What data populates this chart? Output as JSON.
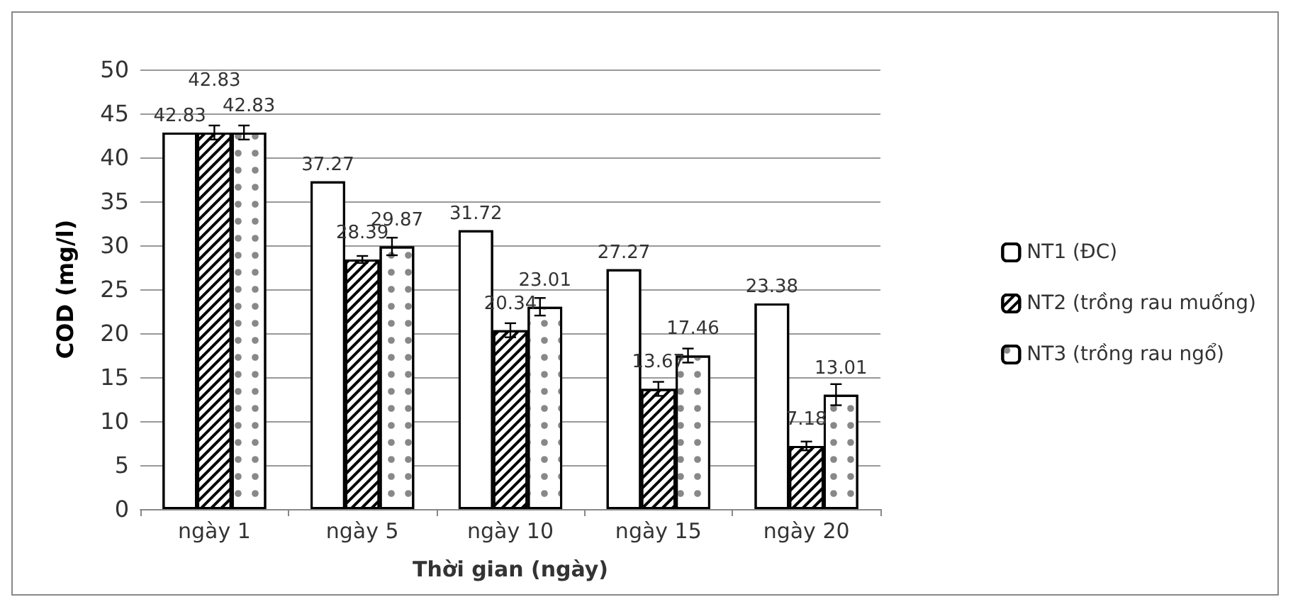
{
  "chart_data": {
    "type": "bar",
    "xlabel": "Thời gian (ngày)",
    "ylabel": "COD (mg/l)",
    "categories": [
      "ngày 1",
      "ngày 5",
      "ngày 10",
      "ngày 15",
      "ngày 20"
    ],
    "series": [
      {
        "name": "NT1 (ĐC)",
        "color": "#ffffff",
        "values": [
          42.83,
          37.27,
          31.72,
          27.27,
          23.38
        ]
      },
      {
        "name": "NT2 (trồng rau muống)",
        "color": "#ffffff",
        "values": [
          42.83,
          28.39,
          20.34,
          13.67,
          7.18
        ],
        "errors": [
          0.8,
          0.4,
          0.8,
          0.8,
          0.5
        ]
      },
      {
        "name": "NT3 (trồng rau ngổ)",
        "color": "#ffffff",
        "values": [
          42.83,
          29.87,
          23.01,
          17.46,
          13.01
        ],
        "errors": [
          0.8,
          1.0,
          1.0,
          0.8,
          1.2
        ]
      }
    ],
    "ylim": [
      0,
      50
    ],
    "yticks": [
      0,
      5,
      10,
      15,
      20,
      25,
      30,
      35,
      40,
      45,
      50
    ],
    "grid": "y",
    "legend": "right",
    "data_labels": true
  }
}
